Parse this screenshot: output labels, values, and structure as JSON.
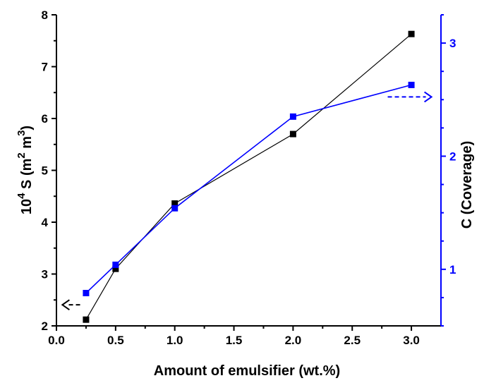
{
  "chart_data": {
    "type": "line",
    "xlabel": "Amount of emulsifier (wt.%)",
    "ylabel": {
      "base": "10",
      "exp": "4",
      "main": " S (m",
      "exp2": "2",
      "mid": " m",
      "exp3": "3",
      "end": ")"
    },
    "y2label": "C (Coverage)",
    "xlim": [
      0.0,
      3.25
    ],
    "ylim": [
      2,
      8
    ],
    "y2lim": [
      0.5,
      3.25
    ],
    "x_ticks": [
      "0.0",
      "0.5",
      "1.0",
      "1.5",
      "2.0",
      "2.5",
      "3.0"
    ],
    "y_ticks": [
      "2",
      "3",
      "4",
      "5",
      "6",
      "7",
      "8"
    ],
    "y2_ticks": [
      "1",
      "2",
      "3"
    ],
    "grid": false,
    "series": [
      {
        "axis": "left",
        "color": "#000000",
        "marker": "square",
        "x": [
          0.25,
          0.5,
          1.0,
          2.0,
          3.0
        ],
        "y": [
          2.12,
          3.1,
          4.36,
          5.7,
          7.63
        ]
      },
      {
        "axis": "right",
        "color": "#0000ff",
        "marker": "square",
        "x": [
          0.25,
          0.5,
          1.0,
          2.0,
          3.0
        ],
        "y": [
          0.79,
          1.04,
          1.54,
          2.35,
          2.63
        ]
      }
    ],
    "annotations": [
      {
        "type": "dashed-arrow",
        "direction": "left",
        "series": 0,
        "color": "#000000"
      },
      {
        "type": "dashed-arrow",
        "direction": "right",
        "series": 1,
        "color": "#0000ff"
      }
    ]
  }
}
